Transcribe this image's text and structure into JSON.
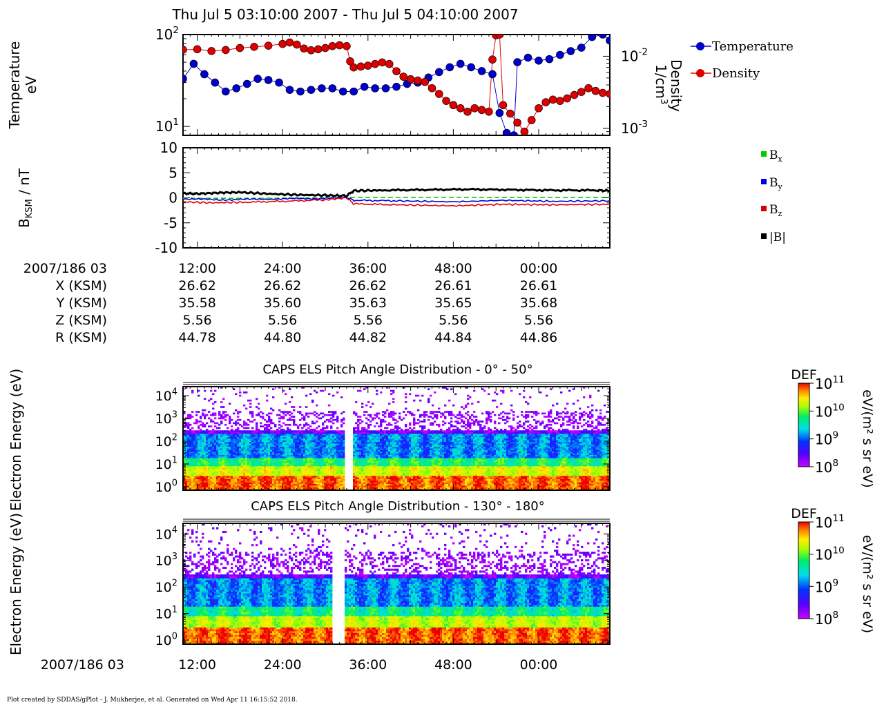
{
  "title": "Thu Jul 5 03:10:00 2007 - Thu Jul 5 04:10:00 2007",
  "footer": "Plot created by SDDAS/gPlot - J. Mukherjee, et al.  Generated on Wed Apr 11 16:15:52 2018.",
  "colors": {
    "temperature": "#0000cc",
    "density": "#dd0000",
    "bx": "#00cc00",
    "by": "#0000dd",
    "bz": "#dd0000",
    "btot": "#000000"
  },
  "panel_labels": {
    "temperature_y": [
      "Temperature",
      "eV"
    ],
    "density_y": [
      "Density",
      "1/cm"
    ],
    "density_y_sup": "3",
    "b_y_main": "B",
    "b_y_sub": "KSM",
    "b_y_unit": " / nT",
    "els_y": [
      "Electron Energy",
      "(eV)"
    ]
  },
  "legend1": {
    "temperature": "Temperature",
    "density": "Density"
  },
  "legend2": {
    "bx": "B",
    "bx_sub": "x",
    "by": "B",
    "by_sub": "y",
    "bz": "B",
    "bz_sub": "z",
    "btot": "|B|"
  },
  "ephemeris": {
    "date_label": "2007/186 03",
    "row_labels": [
      "X (KSM)",
      "Y (KSM)",
      "Z (KSM)",
      "R (KSM)"
    ],
    "times": [
      "12:00",
      "24:00",
      "36:00",
      "48:00",
      "00:00"
    ],
    "rows": [
      [
        "26.62",
        "26.62",
        "26.62",
        "26.61",
        "26.61"
      ],
      [
        "35.58",
        "35.60",
        "35.63",
        "35.65",
        "35.68"
      ],
      [
        "5.56",
        "5.56",
        "5.56",
        "5.56",
        "5.56"
      ],
      [
        "44.78",
        "44.80",
        "44.82",
        "44.84",
        "44.86"
      ]
    ]
  },
  "bottom_axis": {
    "date_label": "2007/186 03",
    "times": [
      "12:00",
      "24:00",
      "36:00",
      "48:00",
      "00:00"
    ]
  },
  "colorbar": {
    "title": "DEF",
    "unit": "eV/(m² s sr eV)",
    "ticks": [
      {
        "base": "10",
        "exp": "11"
      },
      {
        "base": "10",
        "exp": "10"
      },
      {
        "base": "10",
        "exp": "9"
      },
      {
        "base": "10",
        "exp": "8"
      }
    ]
  },
  "chart_data": [
    {
      "type": "line",
      "panel": "moments",
      "x_unit": "minutes after 03:00 UT",
      "xlim": [
        10,
        70
      ],
      "series": [
        {
          "name": "Temperature",
          "axis": "left",
          "yscale": "log",
          "ylim": [
            8,
            100
          ],
          "points": [
            [
              10,
              33
            ],
            [
              11.5,
              48
            ],
            [
              13,
              37
            ],
            [
              14.5,
              30
            ],
            [
              16,
              24
            ],
            [
              17.5,
              26
            ],
            [
              19,
              29
            ],
            [
              20.5,
              33
            ],
            [
              22,
              32
            ],
            [
              23.5,
              30
            ],
            [
              25,
              25
            ],
            [
              26.5,
              24
            ],
            [
              28,
              25
            ],
            [
              29.5,
              26
            ],
            [
              31,
              26
            ],
            [
              32.5,
              24
            ],
            [
              34,
              24
            ],
            [
              35.5,
              27
            ],
            [
              37,
              26
            ],
            [
              38.5,
              26
            ],
            [
              40,
              27
            ],
            [
              41.5,
              29
            ],
            [
              43,
              30
            ],
            [
              44.5,
              34
            ],
            [
              46,
              39
            ],
            [
              47.5,
              44
            ],
            [
              49,
              48
            ],
            [
              50.5,
              44
            ],
            [
              52,
              40
            ],
            [
              53.5,
              37
            ],
            [
              54.5,
              14
            ],
            [
              55.5,
              8.5
            ],
            [
              56.5,
              8
            ],
            [
              57,
              50
            ],
            [
              58.5,
              56
            ],
            [
              60,
              52
            ],
            [
              61.5,
              54
            ],
            [
              63,
              60
            ],
            [
              64.5,
              66
            ],
            [
              66,
              72
            ],
            [
              67.5,
              94
            ],
            [
              69,
              100
            ],
            [
              70,
              86
            ]
          ]
        },
        {
          "name": "Density",
          "axis": "right",
          "yscale": "log",
          "unit": "1/cm3",
          "ylim": [
            0.0008,
            0.02
          ],
          "points": [
            [
              10,
              0.0123
            ],
            [
              12,
              0.0125
            ],
            [
              14,
              0.0118
            ],
            [
              16,
              0.0122
            ],
            [
              18,
              0.013
            ],
            [
              20,
              0.0135
            ],
            [
              22,
              0.014
            ],
            [
              24,
              0.0148
            ],
            [
              25,
              0.0155
            ],
            [
              26,
              0.0145
            ],
            [
              27,
              0.0128
            ],
            [
              28,
              0.0121
            ],
            [
              29,
              0.0125
            ],
            [
              30,
              0.013
            ],
            [
              31,
              0.0138
            ],
            [
              32,
              0.0142
            ],
            [
              33,
              0.0138
            ],
            [
              33.5,
              0.0085
            ],
            [
              34,
              0.007
            ],
            [
              35,
              0.0072
            ],
            [
              36,
              0.0074
            ],
            [
              37,
              0.0078
            ],
            [
              38,
              0.0082
            ],
            [
              39,
              0.0078
            ],
            [
              40,
              0.0062
            ],
            [
              41,
              0.0052
            ],
            [
              42,
              0.0048
            ],
            [
              43,
              0.0046
            ],
            [
              44,
              0.0044
            ],
            [
              45,
              0.0036
            ],
            [
              46,
              0.003
            ],
            [
              47,
              0.0024
            ],
            [
              48,
              0.0021
            ],
            [
              49,
              0.0019
            ],
            [
              50,
              0.0017
            ],
            [
              51,
              0.0019
            ],
            [
              52,
              0.0018
            ],
            [
              53,
              0.0017
            ],
            [
              53.5,
              0.009
            ],
            [
              54,
              0.0195
            ],
            [
              54.5,
              0.02
            ],
            [
              55,
              0.0021
            ],
            [
              56,
              0.0016
            ],
            [
              57,
              0.0012
            ],
            [
              58,
              0.0009
            ],
            [
              59,
              0.0013
            ],
            [
              60,
              0.0019
            ],
            [
              61,
              0.0023
            ],
            [
              62,
              0.0025
            ],
            [
              63,
              0.0024
            ],
            [
              64,
              0.0026
            ],
            [
              65,
              0.0029
            ],
            [
              66,
              0.0032
            ],
            [
              67,
              0.0036
            ],
            [
              68,
              0.0033
            ],
            [
              69,
              0.0031
            ],
            [
              70,
              0.003
            ]
          ]
        }
      ],
      "left_ticks": [
        {
          "base": "10",
          "exp": "2",
          "value": 100
        },
        {
          "base": "10",
          "exp": "1",
          "value": 10
        }
      ],
      "right_ticks": [
        {
          "base": "10",
          "exp": "-2",
          "value": 0.01
        },
        {
          "base": "10",
          "exp": "-3",
          "value": 0.001
        }
      ],
      "ylabel_left": "Temperature eV",
      "ylabel_right": "Density 1/cm3",
      "legend": "right-top"
    },
    {
      "type": "line",
      "panel": "magnetic_field",
      "x_unit": "minutes after 03:00 UT",
      "xlim": [
        10,
        70
      ],
      "ylim": [
        -10,
        10
      ],
      "y_ticks": [
        "10",
        "5",
        "0",
        "-5",
        "-10"
      ],
      "y_tick_values": [
        10,
        5,
        0,
        -5,
        -10
      ],
      "ylabel": "B_KSM / nT",
      "series": [
        {
          "name": "Bx",
          "dashed": true,
          "points": [
            [
              10,
              -0.1
            ],
            [
              20,
              -0.1
            ],
            [
              30,
              0.0
            ],
            [
              33,
              0.1
            ],
            [
              40,
              0.1
            ],
            [
              50,
              0.1
            ],
            [
              60,
              0.1
            ],
            [
              70,
              0.1
            ]
          ]
        },
        {
          "name": "By",
          "points": [
            [
              10,
              -0.2
            ],
            [
              15,
              -0.4
            ],
            [
              20,
              -0.3
            ],
            [
              25,
              -0.2
            ],
            [
              30,
              -0.1
            ],
            [
              33,
              0.1
            ],
            [
              34,
              -0.5
            ],
            [
              40,
              -0.6
            ],
            [
              48,
              -0.8
            ],
            [
              55,
              -0.5
            ],
            [
              62,
              -0.7
            ],
            [
              70,
              -0.6
            ]
          ]
        },
        {
          "name": "Bz",
          "points": [
            [
              10,
              -0.8
            ],
            [
              14,
              -1.0
            ],
            [
              18,
              -0.9
            ],
            [
              24,
              -0.7
            ],
            [
              30,
              -0.4
            ],
            [
              33,
              0.0
            ],
            [
              34,
              -1.2
            ],
            [
              40,
              -1.4
            ],
            [
              48,
              -1.6
            ],
            [
              55,
              -1.3
            ],
            [
              62,
              -1.4
            ],
            [
              70,
              -1.3
            ]
          ]
        },
        {
          "name": "|B|",
          "points": [
            [
              10,
              0.9
            ],
            [
              12,
              0.8
            ],
            [
              15,
              1.0
            ],
            [
              18,
              1.1
            ],
            [
              22,
              0.8
            ],
            [
              26,
              0.6
            ],
            [
              30,
              0.5
            ],
            [
              33,
              0.4
            ],
            [
              34,
              1.4
            ],
            [
              38,
              1.5
            ],
            [
              44,
              1.6
            ],
            [
              50,
              1.7
            ],
            [
              56,
              1.6
            ],
            [
              62,
              1.5
            ],
            [
              68,
              1.5
            ],
            [
              70,
              1.4
            ]
          ]
        }
      ]
    },
    {
      "type": "heatmap",
      "panel": "els_pad_0_50",
      "title": "CAPS ELS Pitch Angle Distribution - 0° - 50°",
      "x_unit": "minutes after 03:00 UT",
      "xlim": [
        10,
        70
      ],
      "ylabel": "Electron Energy (eV)",
      "yscale": "log",
      "ylim": [
        0.7,
        25000
      ],
      "y_ticks": [
        {
          "base": "10",
          "exp": "4"
        },
        {
          "base": "10",
          "exp": "3"
        },
        {
          "base": "10",
          "exp": "2"
        },
        {
          "base": "10",
          "exp": "1"
        },
        {
          "base": "10",
          "exp": "0"
        }
      ],
      "colorbar_label": "DEF eV/(m2 s sr eV)",
      "colorscale": "log",
      "clim": [
        100000000.0,
        100000000000.0
      ],
      "energy_bands_log10_def": [
        {
          "energy_eV": [
            0.7,
            3
          ],
          "log10_def": 10.8
        },
        {
          "energy_eV": [
            3,
            8
          ],
          "log10_def": 10.2
        },
        {
          "energy_eV": [
            8,
            20
          ],
          "log10_def": 9.6
        },
        {
          "energy_eV": [
            20,
            200
          ],
          "log10_def": 9.0
        },
        {
          "energy_eV": [
            200,
            800
          ],
          "log10_def": 8.3
        },
        {
          "energy_eV": [
            800,
            25000
          ],
          "log10_def": 8.0
        }
      ],
      "data_gaps_minutes": [
        33
      ]
    },
    {
      "type": "heatmap",
      "panel": "els_pad_130_180",
      "title": "CAPS ELS Pitch Angle Distribution - 130° - 180°",
      "x_unit": "minutes after 03:00 UT",
      "xlim": [
        10,
        70
      ],
      "ylabel": "Electron Energy (eV)",
      "yscale": "log",
      "ylim": [
        0.7,
        25000
      ],
      "y_ticks": [
        {
          "base": "10",
          "exp": "4"
        },
        {
          "base": "10",
          "exp": "3"
        },
        {
          "base": "10",
          "exp": "2"
        },
        {
          "base": "10",
          "exp": "1"
        },
        {
          "base": "10",
          "exp": "0"
        }
      ],
      "colorbar_label": "DEF eV/(m2 s sr eV)",
      "colorscale": "log",
      "clim": [
        100000000.0,
        100000000000.0
      ],
      "energy_bands_log10_def": [
        {
          "energy_eV": [
            0.7,
            3
          ],
          "log10_def": 10.8
        },
        {
          "energy_eV": [
            3,
            8
          ],
          "log10_def": 10.1
        },
        {
          "energy_eV": [
            8,
            20
          ],
          "log10_def": 9.5
        },
        {
          "energy_eV": [
            20,
            200
          ],
          "log10_def": 9.0
        },
        {
          "energy_eV": [
            200,
            800
          ],
          "log10_def": 8.3
        },
        {
          "energy_eV": [
            800,
            25000
          ],
          "log10_def": 8.0
        }
      ],
      "data_gaps_minutes": [
        31,
        32
      ]
    }
  ]
}
